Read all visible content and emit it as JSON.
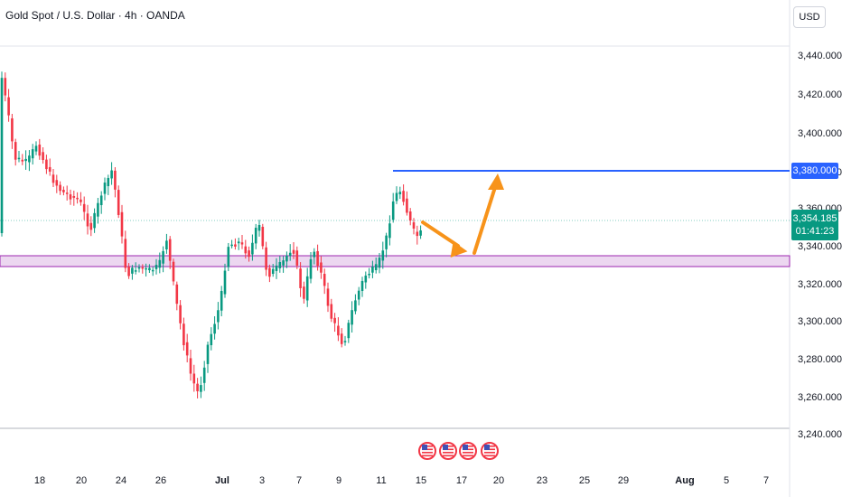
{
  "header": {
    "title": "Gold Spot / U.S. Dollar · 4h · OANDA"
  },
  "price_scale": {
    "currency": "USD",
    "ticks": [
      "3,440.000",
      "3,420.000",
      "3,400.000",
      "3,380.000",
      "3,360.000",
      "3,340.000",
      "3,320.000",
      "3,300.000",
      "3,280.000",
      "3,260.000",
      "3,240.000"
    ]
  },
  "time_scale": {
    "ticks": [
      "18",
      "20",
      "24",
      "26",
      "Jul",
      "3",
      "7",
      "9",
      "11",
      "15",
      "17",
      "20",
      "23",
      "25",
      "29",
      "Aug",
      "5",
      "7"
    ]
  },
  "markers": {
    "resistance_level": "3,380.000",
    "last_price": "3,354.185",
    "countdown": "01:41:23"
  },
  "colors": {
    "up": "#089981",
    "down": "#f23645",
    "level_line": "#2962ff",
    "zone_fill": "#e1bee7",
    "zone_border": "#9c27b0",
    "arrow": "#f7931a"
  },
  "events": {
    "icon": "us-flag-icon",
    "count": 4
  },
  "chart_data": {
    "type": "candlestick",
    "symbol": "Gold Spot / U.S. Dollar",
    "interval": "4h",
    "ylim": [
      3240,
      3450
    ],
    "resistance": 3380,
    "support_zone": [
      3332,
      3337
    ],
    "last_price": 3354.185
  }
}
